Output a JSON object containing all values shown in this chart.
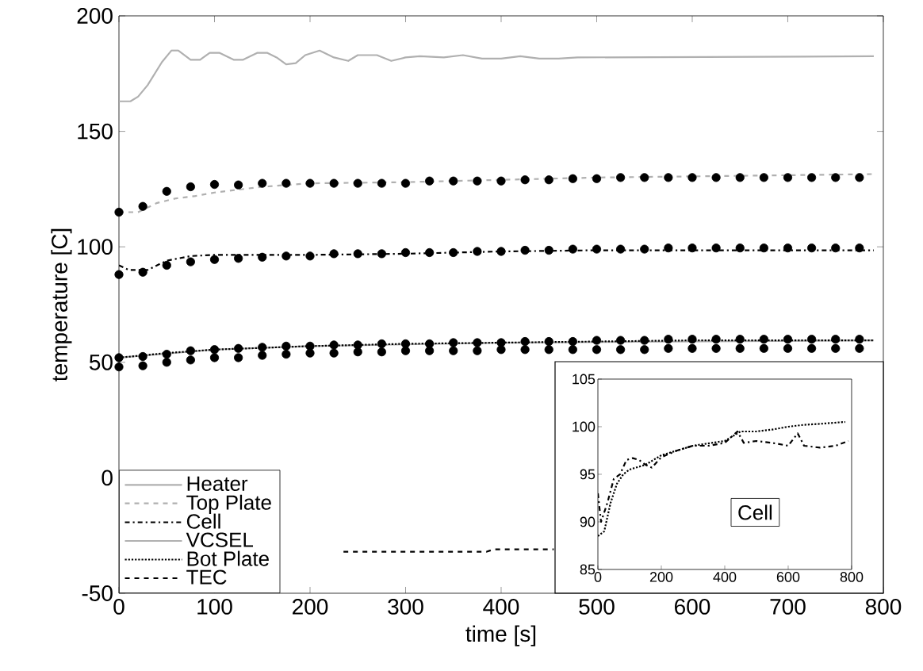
{
  "chart_data": [
    {
      "type": "line",
      "xlabel": "time [s]",
      "ylabel": "temperature [C]",
      "xlim": [
        0,
        800
      ],
      "ylim": [
        -50,
        200
      ],
      "xticks": [
        0,
        100,
        200,
        300,
        400,
        500,
        600,
        700,
        800
      ],
      "yticks": [
        -50,
        0,
        50,
        100,
        150,
        200
      ],
      "legend": "bottom left",
      "series": [
        {
          "name": "Heater",
          "color": "#b0b0b0",
          "line_style": "solid",
          "x": [
            0,
            12,
            20,
            30,
            45,
            55,
            62,
            75,
            85,
            95,
            105,
            120,
            130,
            145,
            155,
            165,
            175,
            185,
            195,
            210,
            225,
            240,
            250,
            270,
            285,
            300,
            315,
            340,
            360,
            380,
            400,
            420,
            440,
            460,
            480,
            790
          ],
          "values": [
            163,
            163,
            165,
            170,
            180,
            185,
            185,
            181,
            181,
            184,
            184,
            181,
            181,
            184,
            184,
            182,
            179,
            179.5,
            183,
            185,
            182,
            180.5,
            183,
            183,
            180.5,
            182,
            182.5,
            182,
            183,
            181.5,
            181.5,
            182.5,
            181.5,
            181.5,
            182,
            182.5
          ]
        },
        {
          "name": "Top Plate",
          "color": "#b0b0b0",
          "line_style": "dashed",
          "x": [
            0,
            20,
            40,
            60,
            80,
            100,
            150,
            200,
            300,
            400,
            500,
            600,
            700,
            790
          ],
          "values": [
            115,
            115,
            119,
            121,
            122,
            123.5,
            126,
            127.5,
            128,
            129,
            130,
            130.5,
            131,
            131.5
          ]
        },
        {
          "name": "Cell",
          "color": "#000000",
          "line_style": "dashdot",
          "x": [
            0,
            10,
            30,
            50,
            75,
            100,
            200,
            300,
            400,
            500,
            600,
            700,
            790
          ],
          "values": [
            92,
            90,
            90,
            94,
            96,
            96.5,
            96.5,
            97,
            98,
            98.5,
            98.5,
            98.5,
            98.5
          ]
        },
        {
          "name": "VCSEL",
          "color": "#b0b0b0",
          "line_style": "solid",
          "x": [
            0,
            100,
            200,
            400,
            790
          ],
          "values": [
            52,
            55.5,
            57,
            58.5,
            59.5
          ]
        },
        {
          "name": "Bot Plate",
          "color": "#000000",
          "line_style": "dotted",
          "x": [
            0,
            50,
            100,
            200,
            300,
            400,
            500,
            600,
            790
          ],
          "values": [
            52,
            54,
            55.5,
            57,
            58,
            58.5,
            59,
            59.5,
            59.5
          ]
        },
        {
          "name": "TEC",
          "color": "#000000",
          "line_style": "dashed",
          "x": [
            235,
            385,
            392,
            455
          ],
          "values": [
            -32,
            -32,
            -31,
            -31
          ]
        },
        {
          "type": "scatter",
          "color": "#000000",
          "x": [
            0,
            25,
            50,
            75,
            100,
            125,
            150,
            175,
            200,
            225,
            250,
            275,
            300,
            325,
            350,
            375,
            400,
            425,
            450,
            475,
            500,
            525,
            550,
            575,
            600,
            625,
            650,
            675,
            700,
            725,
            750,
            775
          ],
          "values": [
            115,
            117.5,
            124,
            126,
            127,
            126.8,
            127.5,
            127.5,
            127.5,
            127.5,
            127.5,
            127.5,
            127.5,
            128.5,
            128.5,
            128.5,
            128.5,
            129,
            129,
            129.5,
            129.5,
            130,
            130,
            130,
            130,
            130,
            130,
            130,
            130,
            130,
            130,
            130
          ]
        },
        {
          "type": "scatter",
          "color": "#000000",
          "x": [
            0,
            25,
            50,
            75,
            100,
            125,
            150,
            175,
            200,
            225,
            250,
            275,
            300,
            325,
            350,
            375,
            400,
            425,
            450,
            475,
            500,
            525,
            550,
            575,
            600,
            625,
            650,
            675,
            700,
            725,
            750,
            775
          ],
          "values": [
            88,
            89,
            92,
            93.5,
            94.5,
            95,
            95.5,
            96,
            96,
            97,
            97,
            97,
            97.5,
            97.5,
            97.5,
            98,
            98,
            98.5,
            98.5,
            99,
            99,
            99,
            99,
            99.5,
            99.5,
            99.5,
            99.5,
            99.5,
            99.5,
            99.5,
            99.5,
            99.5
          ]
        },
        {
          "type": "scatter",
          "color": "#000000",
          "x": [
            0,
            25,
            50,
            75,
            100,
            125,
            150,
            175,
            200,
            225,
            250,
            275,
            300,
            325,
            350,
            375,
            400,
            425,
            450,
            475,
            500,
            525,
            550,
            575,
            600,
            625,
            650,
            675,
            700,
            725,
            750,
            775
          ],
          "values": [
            52,
            52.5,
            53.5,
            55,
            55.5,
            56,
            56.5,
            57,
            57,
            57.5,
            57.5,
            58,
            58,
            58,
            58.5,
            58.5,
            58.5,
            59,
            59,
            59,
            59.5,
            59.5,
            59.5,
            60,
            60,
            60,
            60,
            60,
            60,
            60,
            60,
            60
          ]
        },
        {
          "type": "scatter",
          "color": "#000000",
          "x": [
            0,
            25,
            50,
            75,
            100,
            125,
            150,
            175,
            200,
            225,
            250,
            275,
            300,
            325,
            350,
            375,
            400,
            425,
            450,
            475,
            500,
            525,
            550,
            575,
            600,
            625,
            650,
            675,
            700,
            725,
            750,
            775
          ],
          "values": [
            48,
            48.5,
            50,
            51,
            52,
            52,
            53,
            53.5,
            54,
            54,
            54.5,
            54.5,
            55,
            55,
            55,
            55,
            55.5,
            55.5,
            55.5,
            55.5,
            55.5,
            55.5,
            55.5,
            56,
            56,
            56,
            56,
            56,
            56,
            56,
            56,
            56
          ]
        }
      ]
    },
    {
      "type": "line",
      "xlim": [
        0,
        800
      ],
      "ylim": [
        85,
        105
      ],
      "xticks": [
        0,
        200,
        400,
        600,
        800
      ],
      "yticks": [
        85,
        90,
        95,
        100,
        105
      ],
      "annotations": [
        "Cell"
      ],
      "series": [
        {
          "color": "#000000",
          "line_style": "dotted",
          "x": [
            0,
            20,
            40,
            60,
            80,
            100,
            150,
            200,
            250,
            300,
            400,
            450,
            500,
            550,
            600,
            650,
            700,
            780
          ],
          "values": [
            88.5,
            89,
            92,
            94,
            95,
            95.5,
            96,
            97,
            97.5,
            98,
            98.5,
            99.5,
            99.5,
            99.7,
            100,
            100.2,
            100.3,
            100.5
          ]
        },
        {
          "color": "#000000",
          "line_style": "dashdot",
          "x": [
            0,
            10,
            30,
            50,
            70,
            90,
            110,
            130,
            150,
            170,
            200,
            250,
            300,
            350,
            400,
            440,
            460,
            500,
            550,
            600,
            630,
            650,
            700,
            750,
            790
          ],
          "values": [
            93,
            90,
            92,
            94.5,
            95,
            96.5,
            96.7,
            96.5,
            96,
            95.7,
            96.8,
            97.5,
            98,
            98,
            98.3,
            99.5,
            98.3,
            98.5,
            98.3,
            98,
            99.3,
            98,
            97.8,
            98,
            98.5
          ]
        }
      ]
    }
  ]
}
